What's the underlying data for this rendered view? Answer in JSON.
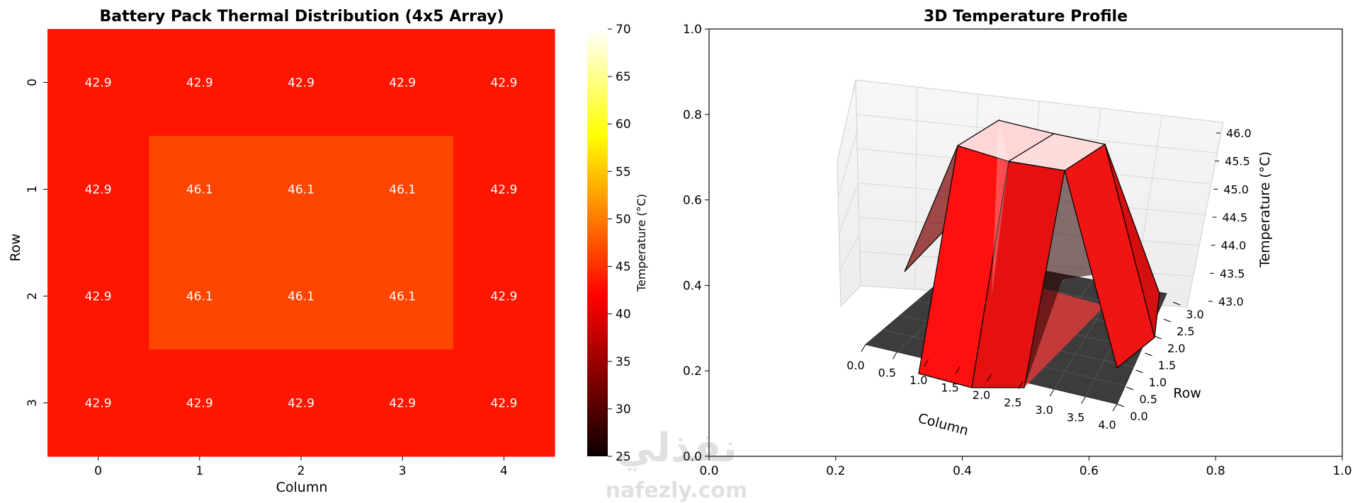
{
  "watermark": {
    "arabic": "نفذلي",
    "latin": "nafezly.com"
  },
  "chart_data": [
    {
      "type": "heatmap",
      "title": "Battery Pack Thermal Distribution (4x5 Array)",
      "xlabel": "Column",
      "ylabel": "Row",
      "x_ticks": [
        "0",
        "1",
        "2",
        "3",
        "4"
      ],
      "y_ticks": [
        "0",
        "1",
        "2",
        "3"
      ],
      "values": [
        [
          42.9,
          42.9,
          42.9,
          42.9,
          42.9
        ],
        [
          42.9,
          46.1,
          46.1,
          46.1,
          42.9
        ],
        [
          42.9,
          46.1,
          46.1,
          46.1,
          42.9
        ],
        [
          42.9,
          42.9,
          42.9,
          42.9,
          42.9
        ]
      ],
      "colormap": "hot",
      "vmin": 25,
      "vmax": 70,
      "colorbar": {
        "label": "Temperature (°C)",
        "ticks": [
          25,
          30,
          35,
          40,
          45,
          50,
          55,
          60,
          65,
          70
        ]
      }
    },
    {
      "type": "bar3d",
      "title": "3D Temperature Profile",
      "xlabel": "Column",
      "ylabel": "Row",
      "zlabel": "Temperature (°C)",
      "x_ticks": [
        "0.0",
        "0.5",
        "1.0",
        "1.5",
        "2.0",
        "2.5",
        "3.0",
        "3.5",
        "4.0"
      ],
      "y_ticks": [
        "0.0",
        "0.5",
        "1.0",
        "1.5",
        "2.0",
        "2.5",
        "3.0"
      ],
      "z_ticks": [
        "43.0",
        "43.5",
        "44.0",
        "44.5",
        "45.0",
        "45.5",
        "46.0"
      ],
      "zlim": [
        43.0,
        46.1
      ],
      "surface_values": [
        [
          42.9,
          42.9,
          42.9,
          42.9,
          42.9
        ],
        [
          42.9,
          46.1,
          46.1,
          46.1,
          42.9
        ],
        [
          42.9,
          46.1,
          46.1,
          46.1,
          42.9
        ],
        [
          42.9,
          42.9,
          42.9,
          42.9,
          42.9
        ]
      ],
      "outer_axes_ticks": {
        "x": [
          "0.0",
          "0.2",
          "0.4",
          "0.6",
          "0.8",
          "1.0"
        ],
        "y": [
          "0.0",
          "0.2",
          "0.4",
          "0.6",
          "0.8",
          "1.0"
        ]
      }
    }
  ]
}
